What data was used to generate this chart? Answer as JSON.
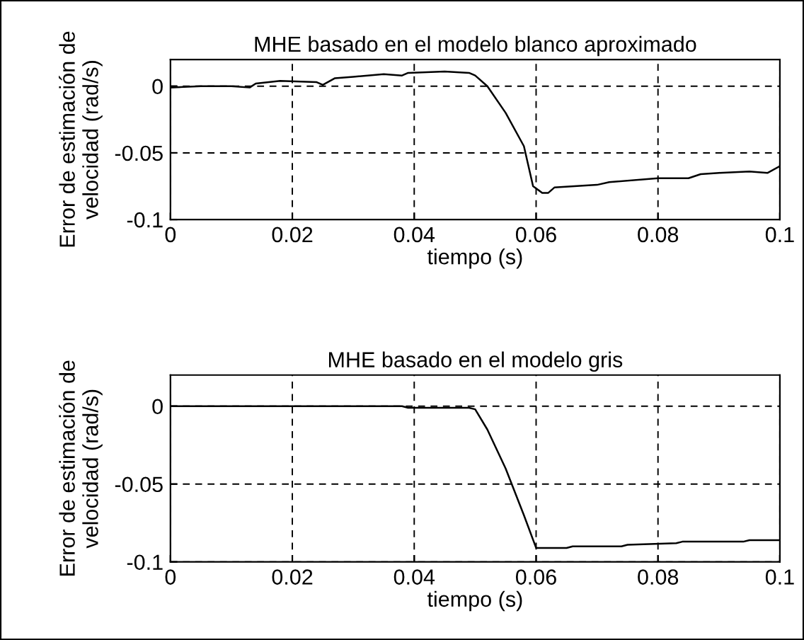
{
  "chart_data": [
    {
      "type": "line",
      "title": "MHE basado en el modelo blanco aproximado",
      "xlabel": "tiempo (s)",
      "ylabel": "Error de estimación de\nvelocidad (rad/s)",
      "xlim": [
        0,
        0.1
      ],
      "ylim": [
        -0.1,
        0.02
      ],
      "xticks": [
        0,
        0.02,
        0.04,
        0.06,
        0.08,
        0.1
      ],
      "yticks": [
        {
          "value": 0,
          "label": "0"
        },
        {
          "value": -0.05,
          "label": "-0.05"
        },
        {
          "value": -0.1,
          "label": "-0.1"
        }
      ],
      "grid": true,
      "line_style": "solid",
      "marker": "none",
      "series": [
        {
          "color": "#000000",
          "x": [
            0,
            0.005,
            0.01,
            0.013,
            0.014,
            0.018,
            0.024,
            0.025,
            0.027,
            0.03,
            0.035,
            0.038,
            0.039,
            0.045,
            0.049,
            0.05,
            0.052,
            0.055,
            0.058,
            0.0595,
            0.061,
            0.062,
            0.063,
            0.07,
            0.072,
            0.08,
            0.085,
            0.087,
            0.09,
            0.095,
            0.098,
            0.1
          ],
          "values": [
            -0.001,
            0,
            0,
            -0.001,
            0.002,
            0.004,
            0.003,
            0.001,
            0.006,
            0.007,
            0.009,
            0.008,
            0.01,
            0.011,
            0.01,
            0.008,
            0,
            -0.02,
            -0.045,
            -0.075,
            -0.08,
            -0.08,
            -0.076,
            -0.074,
            -0.072,
            -0.069,
            -0.069,
            -0.066,
            -0.065,
            -0.064,
            -0.065,
            -0.06
          ]
        }
      ]
    },
    {
      "type": "line",
      "title": "MHE basado en el modelo gris",
      "xlabel": "tiempo (s)",
      "ylabel": "Error de estimación de\nvelocidad (rad/s)",
      "xlim": [
        0,
        0.1
      ],
      "ylim": [
        -0.1,
        0.02
      ],
      "xticks": [
        0,
        0.02,
        0.04,
        0.06,
        0.08,
        0.1
      ],
      "yticks": [
        {
          "value": 0,
          "label": "0"
        },
        {
          "value": -0.05,
          "label": "-0.05"
        },
        {
          "value": -0.1,
          "label": "-0.1"
        }
      ],
      "grid": true,
      "line_style": "solid",
      "marker": "none",
      "series": [
        {
          "color": "#000000",
          "x": [
            0,
            0.038,
            0.039,
            0.049,
            0.05,
            0.052,
            0.055,
            0.058,
            0.06,
            0.065,
            0.066,
            0.074,
            0.075,
            0.083,
            0.084,
            0.094,
            0.095,
            0.1
          ],
          "values": [
            0,
            0,
            -0.001,
            -0.001,
            -0.002,
            -0.015,
            -0.04,
            -0.07,
            -0.091,
            -0.091,
            -0.09,
            -0.09,
            -0.089,
            -0.088,
            -0.087,
            -0.087,
            -0.086,
            -0.086
          ]
        }
      ]
    }
  ]
}
